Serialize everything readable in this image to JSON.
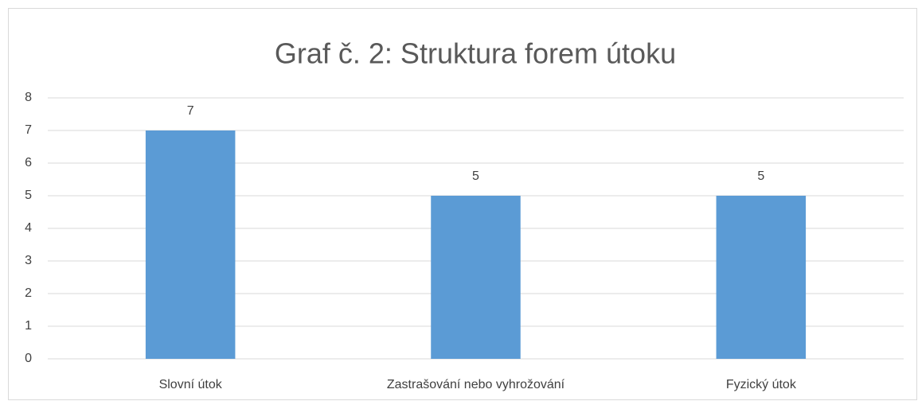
{
  "chart_data": {
    "type": "bar",
    "title": "Graf č. 2: Struktura forem útoku",
    "categories": [
      "Slovní útok",
      "Zastrašování nebo vyhrožování",
      "Fyzický útok"
    ],
    "values": [
      7,
      5,
      5
    ],
    "color": "#5b9bd5",
    "ylim": [
      0,
      8
    ],
    "yticks": [
      0,
      1,
      2,
      3,
      4,
      5,
      6,
      7,
      8
    ],
    "grid": true
  }
}
